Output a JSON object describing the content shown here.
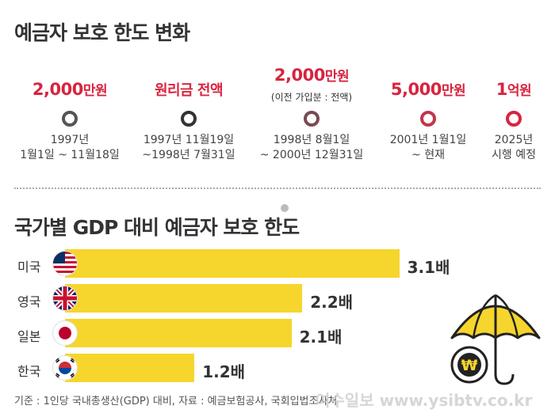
{
  "titles": {
    "timeline": "예금자 보호 한도 변화",
    "bars": "국가별 GDP 대비 예금자 보호 한도"
  },
  "timeline": [
    {
      "value_num": "2,000",
      "value_unit": "만원",
      "note": "",
      "date1": "1997년",
      "date2": "1월1일 ~ 11월18일"
    },
    {
      "value_num": "원리금 전액",
      "value_unit": "",
      "note": "",
      "date1": "1997년 11월19일",
      "date2": "~1998년 7월31일"
    },
    {
      "value_num": "2,000",
      "value_unit": "만원",
      "note": "(이전 가입분 : 전액)",
      "date1": "1998년 8월1일",
      "date2": "~ 2000년 12월31일"
    },
    {
      "value_num": "5,000",
      "value_unit": "만원",
      "note": "",
      "date1": "2001년 1월1일",
      "date2": "~ 현재"
    },
    {
      "value_num": "1",
      "value_unit": "억원",
      "note": "",
      "date1": "2025년",
      "date2": "시행 예정"
    }
  ],
  "colors": {
    "accent": "#d8243f",
    "bar": "#f6d52c",
    "line_gray": "#555555"
  },
  "chart_data": {
    "type": "bar",
    "orientation": "horizontal",
    "title": "국가별 GDP 대비 예금자 보호 한도",
    "categories": [
      "미국",
      "영국",
      "일본",
      "한국"
    ],
    "values": [
      3.1,
      2.2,
      2.1,
      1.2
    ],
    "value_labels": [
      "3.1배",
      "2.2배",
      "2.1배",
      "1.2배"
    ],
    "unit": "배"
  },
  "umbrella_symbol": "₩",
  "source": "기준 : 1인당 국내총생산(GDP) 대비, 자료 : 예금보험공사, 국회입법조사처",
  "watermark": "여수일보 www.ysibtv.co.kr"
}
